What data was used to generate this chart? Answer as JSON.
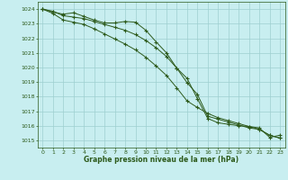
{
  "title": "Graphe pression niveau de la mer (hPa)",
  "bg_color": "#c8eef0",
  "grid_color": "#9ecfcf",
  "line_color": "#2d5a1b",
  "ylim": [
    1014.5,
    1024.5
  ],
  "yticks": [
    1015,
    1016,
    1017,
    1018,
    1019,
    1020,
    1021,
    1022,
    1023,
    1024
  ],
  "xlim": [
    -0.5,
    23.5
  ],
  "xticks": [
    0,
    1,
    2,
    3,
    4,
    5,
    6,
    7,
    8,
    9,
    10,
    11,
    12,
    13,
    14,
    15,
    16,
    17,
    18,
    19,
    20,
    21,
    22,
    23
  ],
  "line1_x": [
    0,
    1,
    2,
    3,
    4,
    5,
    6,
    7,
    8,
    9,
    10,
    11,
    12,
    13,
    14,
    15,
    16,
    17,
    18,
    19,
    20,
    21,
    22,
    23
  ],
  "line1_y": [
    1024.0,
    1023.8,
    1023.65,
    1023.75,
    1023.5,
    1023.25,
    1023.05,
    1023.05,
    1023.15,
    1023.1,
    1022.55,
    1021.75,
    1021.0,
    1019.95,
    1019.25,
    1017.85,
    1016.5,
    1016.2,
    1016.1,
    1016.0,
    1015.95,
    1015.85,
    1015.2,
    1015.35
  ],
  "line2_x": [
    0,
    1,
    2,
    3,
    4,
    5,
    6,
    7,
    8,
    9,
    10,
    11,
    12,
    13,
    14,
    15,
    16,
    17,
    18,
    19,
    20,
    21,
    22,
    23
  ],
  "line2_y": [
    1024.0,
    1023.7,
    1023.25,
    1023.1,
    1022.95,
    1022.65,
    1022.3,
    1021.95,
    1021.6,
    1021.2,
    1020.7,
    1020.1,
    1019.45,
    1018.6,
    1017.7,
    1017.25,
    1016.85,
    1016.55,
    1016.35,
    1016.15,
    1015.95,
    1015.75,
    1015.35,
    1015.15
  ],
  "line3_x": [
    0,
    1,
    2,
    3,
    4,
    5,
    6,
    7,
    8,
    9,
    10,
    11,
    12,
    13,
    14,
    15,
    16,
    17,
    18,
    19,
    20,
    21,
    22,
    23
  ],
  "line3_y": [
    1024.0,
    1023.85,
    1023.55,
    1023.45,
    1023.35,
    1023.15,
    1022.95,
    1022.75,
    1022.55,
    1022.25,
    1021.85,
    1021.35,
    1020.75,
    1019.95,
    1018.95,
    1018.15,
    1016.65,
    1016.45,
    1016.25,
    1016.05,
    1015.85,
    1015.75,
    1015.35,
    1015.15
  ]
}
